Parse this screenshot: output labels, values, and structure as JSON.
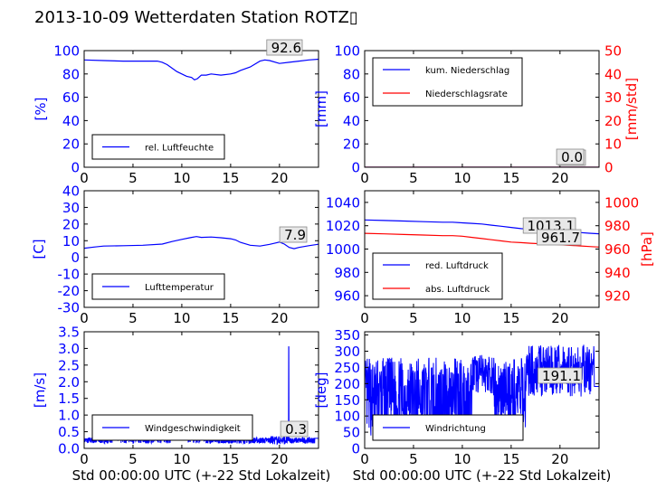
{
  "figure": {
    "title": "2013-10-09 Wetterdaten Station ROTZ▯",
    "xlabel": "Std 00:00:00 UTC (+-22 Std Lokalzeit)"
  },
  "colors": {
    "blue": "#0000ff",
    "red": "#ff0000",
    "black": "#000000",
    "lightblue": "#6f6fff"
  },
  "chart_data": [
    {
      "id": "humidity",
      "type": "line",
      "xlim": [
        0,
        24
      ],
      "xticks": [
        0,
        5,
        10,
        15,
        20
      ],
      "ylim": [
        0,
        100
      ],
      "yticks": [
        0,
        20,
        40,
        60,
        80,
        100
      ],
      "ylabel": "[%]",
      "legend": [
        "rel. Luftfeuchte"
      ],
      "legend_position": "lower-left",
      "current_value": "92.6",
      "series": [
        {
          "name": "rel. Luftfeuchte",
          "color": "#0000ff",
          "x": [
            0,
            2,
            4,
            6,
            7.5,
            8,
            8.5,
            9,
            9.5,
            10,
            10.5,
            11,
            11.3,
            11.6,
            12,
            12.5,
            13,
            14,
            15,
            15.5,
            16,
            17,
            18,
            18.5,
            19,
            20,
            21,
            22,
            23,
            24
          ],
          "y": [
            92,
            91.5,
            91,
            91,
            91,
            90,
            88,
            85,
            82,
            80,
            78,
            77,
            75,
            76,
            79,
            79,
            80,
            79,
            80,
            81,
            83,
            86,
            91,
            92,
            91.5,
            89,
            90,
            91,
            92,
            92.6
          ]
        }
      ]
    },
    {
      "id": "precipitation",
      "type": "line",
      "xlim": [
        0,
        24
      ],
      "xticks": [
        0,
        5,
        10,
        15,
        20
      ],
      "ylim": [
        0,
        100
      ],
      "yticks": [
        0,
        20,
        40,
        60,
        80,
        100
      ],
      "ylabel": "[mm]",
      "y2lim": [
        0,
        50
      ],
      "y2ticks": [
        0,
        10,
        20,
        30,
        40,
        50
      ],
      "y2label": "[mm/std]",
      "legend": [
        "kum. Niederschlag",
        "Niederschlagsrate"
      ],
      "legend_position": "upper-left",
      "current_value": "0.0",
      "current_value2": "0.0",
      "series": [
        {
          "name": "kum. Niederschlag",
          "color": "#0000ff",
          "x": [
            0,
            24
          ],
          "y": [
            0,
            0
          ]
        },
        {
          "name": "Niederschlagsrate",
          "color": "#ff0000",
          "axis": "right",
          "x": [
            0,
            24
          ],
          "y": [
            0,
            0
          ]
        }
      ]
    },
    {
      "id": "temperature",
      "type": "line",
      "xlim": [
        0,
        24
      ],
      "xticks": [
        0,
        5,
        10,
        15,
        20
      ],
      "ylim": [
        -30,
        40
      ],
      "yticks": [
        -30,
        -20,
        -10,
        0,
        10,
        20,
        30,
        40
      ],
      "ylabel": "[C]",
      "legend": [
        "Lufttemperatur"
      ],
      "legend_position": "lower-left",
      "current_value": "7.9",
      "series": [
        {
          "name": "Lufttemperatur",
          "color": "#0000ff",
          "x": [
            0,
            1,
            2,
            4,
            6,
            8,
            9,
            10,
            11,
            11.5,
            12,
            13,
            14,
            15,
            15.5,
            16,
            17,
            18,
            19,
            19.5,
            20,
            20.5,
            21,
            21.5,
            22,
            23,
            24
          ],
          "y": [
            5.5,
            6.2,
            6.8,
            7,
            7.3,
            8,
            9.5,
            10.8,
            12,
            12.5,
            12,
            12.2,
            11.8,
            11.2,
            10.5,
            9,
            7.3,
            6.8,
            7.8,
            8.5,
            9.2,
            8,
            6,
            5.2,
            6,
            7,
            7.9
          ]
        }
      ]
    },
    {
      "id": "pressure",
      "type": "line",
      "xlim": [
        0,
        24
      ],
      "xticks": [
        0,
        5,
        10,
        15,
        20
      ],
      "ylim": [
        950,
        1050
      ],
      "yticks": [
        960,
        980,
        1000,
        1020,
        1040
      ],
      "y2lim": [
        910,
        1010
      ],
      "y2ticks": [
        920,
        940,
        960,
        980,
        1000
      ],
      "y2label": "[hPa]",
      "legend": [
        "red. Luftdruck",
        "abs. Luftdruck"
      ],
      "legend_position": "lower-left",
      "current_value": "1013.1",
      "current_value2": "961.7",
      "series": [
        {
          "name": "red. Luftdruck",
          "color": "#0000ff",
          "x": [
            0,
            2,
            4,
            6,
            8,
            9,
            10,
            11,
            12,
            13,
            14,
            15,
            16,
            17,
            18,
            19,
            20,
            21,
            22,
            23,
            24
          ],
          "y": [
            1025,
            1024.5,
            1024,
            1023.5,
            1023,
            1023,
            1022.5,
            1022,
            1021.5,
            1020.5,
            1019.5,
            1018.5,
            1017.5,
            1017,
            1016.8,
            1016.5,
            1016,
            1015,
            1014.2,
            1013.6,
            1013.1
          ]
        },
        {
          "name": "abs. Luftdruck",
          "color": "#ff0000",
          "axis": "right",
          "x": [
            0,
            2,
            4,
            6,
            8,
            9,
            10,
            11,
            12,
            13,
            14,
            15,
            16,
            17,
            18,
            19,
            20,
            21,
            22,
            23,
            24
          ],
          "y": [
            973.5,
            973,
            972.5,
            972,
            971.5,
            971.5,
            971,
            970,
            969,
            968,
            967,
            966,
            965.5,
            965,
            964.6,
            964.2,
            963.8,
            963.2,
            962.7,
            962.2,
            961.7
          ]
        }
      ]
    },
    {
      "id": "windspeed",
      "type": "line",
      "xlim": [
        0,
        24
      ],
      "xticks": [
        0,
        5,
        10,
        15,
        20
      ],
      "ylim": [
        0,
        3.5
      ],
      "yticks": [
        0.0,
        0.5,
        1.0,
        1.5,
        2.0,
        2.5,
        3.0,
        3.5
      ],
      "ylabel": "[m/s]",
      "legend": [
        "Windgeschwindigkeit"
      ],
      "legend_position": "lower-left",
      "current_value": "0.3",
      "series": [
        {
          "name": "Windgeschwindigkeit",
          "color": "#0000ff",
          "noise": "wind",
          "seed": 7
        }
      ]
    },
    {
      "id": "winddir",
      "type": "line",
      "xlim": [
        0,
        24
      ],
      "xticks": [
        0,
        5,
        10,
        15,
        20
      ],
      "ylim": [
        0,
        360
      ],
      "yticks": [
        0,
        50,
        100,
        150,
        200,
        250,
        300,
        350
      ],
      "ylabel": "[deg]",
      "legend": [
        "Windrichtung"
      ],
      "legend_position": "lower-left",
      "current_value": "191.1",
      "series": [
        {
          "name": "Windrichtung",
          "color": "#0000ff",
          "noise": "dir",
          "seed": 13
        }
      ]
    }
  ]
}
